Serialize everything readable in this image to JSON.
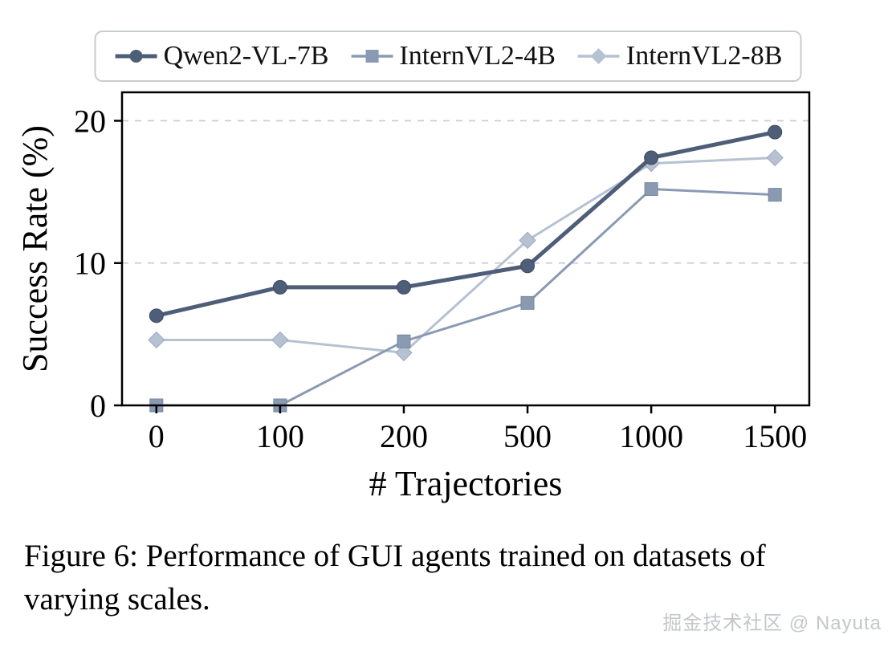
{
  "figure": {
    "caption": "Figure 6: Performance of GUI agents trained on datasets of varying scales."
  },
  "watermark": {
    "text": "掘金技术社区 @ Nayuta"
  },
  "chart_data": {
    "type": "line",
    "title": "",
    "xlabel": "# Trajectories",
    "ylabel": "Success Rate (%)",
    "categories": [
      0,
      100,
      200,
      500,
      1000,
      1500
    ],
    "x_scale": "categorical-evenly-spaced",
    "ylim": [
      0,
      22
    ],
    "yticks": [
      0,
      10,
      20
    ],
    "grid": "horizontal dashed at yticks",
    "legend_position": "top-outside",
    "series": [
      {
        "name": "Qwen2-VL-7B",
        "marker": "circle",
        "color": "#4e5d78",
        "values": [
          6.3,
          8.3,
          8.3,
          9.8,
          17.4,
          19.2
        ]
      },
      {
        "name": "InternVL2-4B",
        "marker": "square",
        "color": "#8a9ab3",
        "values": [
          0,
          0,
          4.5,
          7.2,
          15.2,
          14.8
        ]
      },
      {
        "name": "InternVL2-8B",
        "marker": "diamond",
        "color": "#b6c1d1",
        "values": [
          4.6,
          4.6,
          3.7,
          11.6,
          17.0,
          17.4
        ]
      }
    ]
  }
}
